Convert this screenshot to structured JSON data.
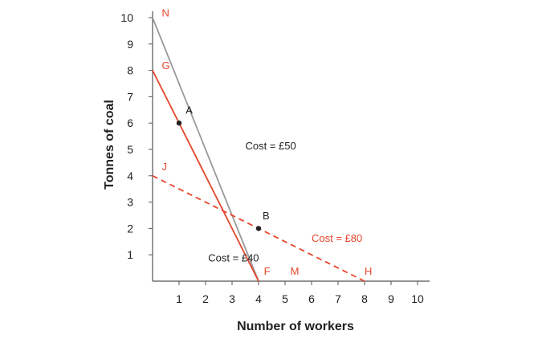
{
  "chart_data": {
    "type": "line",
    "title": "",
    "xlabel": "Number of workers",
    "ylabel": "Tonnes of coal",
    "xlim": [
      0,
      10
    ],
    "ylim": [
      0,
      10
    ],
    "x_ticks": [
      "1",
      "2",
      "3",
      "4",
      "5",
      "6",
      "7",
      "8",
      "9",
      "10"
    ],
    "y_ticks": [
      "1",
      "2",
      "3",
      "4",
      "5",
      "6",
      "7",
      "8",
      "9",
      "10"
    ],
    "grid": false,
    "colors": {
      "red": "#e8452b",
      "grey": "#999999",
      "ink": "#222222"
    },
    "lines": [
      {
        "x": [
          0,
          4
        ],
        "y": [
          10,
          0
        ],
        "color": "grey",
        "style": "solid",
        "label": "Cost = £50",
        "label_pos": [
          3.5,
          5
        ]
      },
      {
        "x": [
          0,
          4
        ],
        "y": [
          8,
          0
        ],
        "color": "red",
        "style": "solid",
        "label": "Cost = £40",
        "label_pos": [
          2.1,
          0.75
        ]
      },
      {
        "x": [
          0,
          8
        ],
        "y": [
          4,
          0
        ],
        "color": "red",
        "style": "dashed",
        "label": "Cost = £80",
        "label_pos": [
          6.0,
          1.5
        ]
      }
    ],
    "line_label_colors": [
      "#222222",
      "#222222",
      "#e8452b"
    ],
    "points": [
      {
        "name": "A",
        "x": 1,
        "y": 6,
        "label_pos": [
          1.25,
          6.35
        ]
      },
      {
        "name": "B",
        "x": 4,
        "y": 2,
        "label_pos": [
          4.15,
          2.35
        ]
      }
    ],
    "annotations": [
      {
        "text": "N",
        "x": 0.35,
        "y": 10.05,
        "color": "red"
      },
      {
        "text": "G",
        "x": 0.35,
        "y": 8.05,
        "color": "red"
      },
      {
        "text": "J",
        "x": 0.35,
        "y": 4.2,
        "color": "red"
      },
      {
        "text": "F",
        "x": 4.2,
        "y": 0.25,
        "color": "red"
      },
      {
        "text": "M",
        "x": 5.2,
        "y": 0.25,
        "color": "red"
      },
      {
        "text": "H",
        "x": 8.0,
        "y": 0.25,
        "color": "red"
      }
    ]
  }
}
